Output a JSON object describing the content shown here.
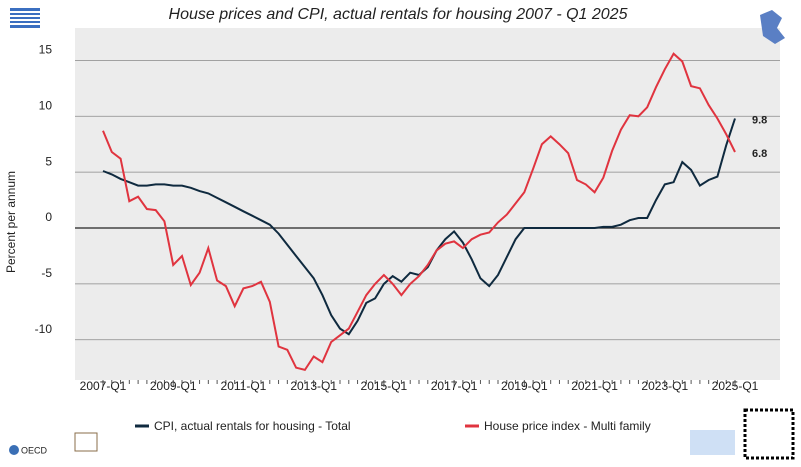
{
  "chart_data": {
    "type": "line",
    "title": "House prices and CPI, actual rentals for housing 2007 - Q1 2025",
    "y_label": "Percent per annum",
    "logo_text": "OECD",
    "categories": [
      "2007-Q1",
      null,
      null,
      null,
      null,
      null,
      null,
      null,
      "2009-Q1",
      null,
      null,
      null,
      null,
      null,
      null,
      null,
      "2011-Q1",
      null,
      null,
      null,
      null,
      null,
      null,
      null,
      "2013-Q1",
      null,
      null,
      null,
      null,
      null,
      null,
      null,
      "2015-Q1",
      null,
      null,
      null,
      null,
      null,
      null,
      null,
      "2017-Q1",
      null,
      null,
      null,
      null,
      null,
      null,
      null,
      "2019-Q1",
      null,
      null,
      null,
      null,
      null,
      null,
      null,
      "2021-Q1",
      null,
      null,
      null,
      null,
      null,
      null,
      null,
      "2023-Q1",
      null,
      null,
      null,
      null,
      null,
      null,
      null,
      "2025-Q1"
    ],
    "series": [
      {
        "name": "CPI, actual rentals for housing - Total",
        "color": "#0f2a3f",
        "values": [
          5.1,
          4.8,
          4.4,
          4.1,
          3.8,
          3.8,
          3.9,
          3.9,
          3.8,
          3.8,
          3.6,
          3.3,
          3.1,
          2.7,
          2.3,
          1.9,
          1.5,
          1.1,
          0.7,
          0.3,
          -0.5,
          -1.5,
          -2.5,
          -3.5,
          -4.5,
          -6,
          -7.8,
          -9,
          -9.5,
          -8.3,
          -6.7,
          -6.3,
          -5,
          -4.3,
          -4.8,
          -4,
          -4.2,
          -3.5,
          -2,
          -1,
          -0.3,
          -1.3,
          -2.8,
          -4.5,
          -5.2,
          -4.2,
          -2.6,
          -1,
          0,
          0,
          0,
          0,
          0,
          0,
          0,
          0,
          0,
          0.1,
          0.1,
          0.3,
          0.7,
          0.9,
          0.9,
          2.5,
          3.9,
          4.1,
          5.9,
          5.2,
          3.8,
          4.3,
          4.6,
          7.4,
          9.8
        ]
      },
      {
        "name": "House price index - Multi family",
        "color": "#e0343f",
        "values": [
          8.7,
          6.8,
          6.2,
          2.4,
          2.8,
          1.7,
          1.6,
          0.6,
          -3.3,
          -2.5,
          -5.1,
          -4,
          -1.8,
          -4.7,
          -5.2,
          -7,
          -5.4,
          -5.2,
          -4.8,
          -6.6,
          -10.6,
          -10.9,
          -12.5,
          -12.7,
          -11.5,
          -12,
          -10.2,
          -9.6,
          -9,
          -7.5,
          -6,
          -5,
          -4.2,
          -5,
          -6,
          -5,
          -4.3,
          -3.3,
          -2,
          -1.4,
          -1.2,
          -1.8,
          -1,
          -0.6,
          -0.4,
          0.5,
          1.2,
          2.2,
          3.2,
          5.3,
          7.5,
          8.2,
          7.5,
          6.7,
          4.3,
          3.9,
          3.2,
          4.5,
          6.9,
          8.8,
          10.1,
          10,
          10.8,
          12.6,
          14.2,
          15.6,
          14.9,
          12.7,
          12.5,
          11,
          9.8,
          8.4,
          6.8
        ]
      }
    ],
    "ylim": [
      -13.6,
      17.9
    ],
    "yticks": [
      -10,
      -5,
      0,
      5,
      10,
      15
    ],
    "grid": true
  }
}
